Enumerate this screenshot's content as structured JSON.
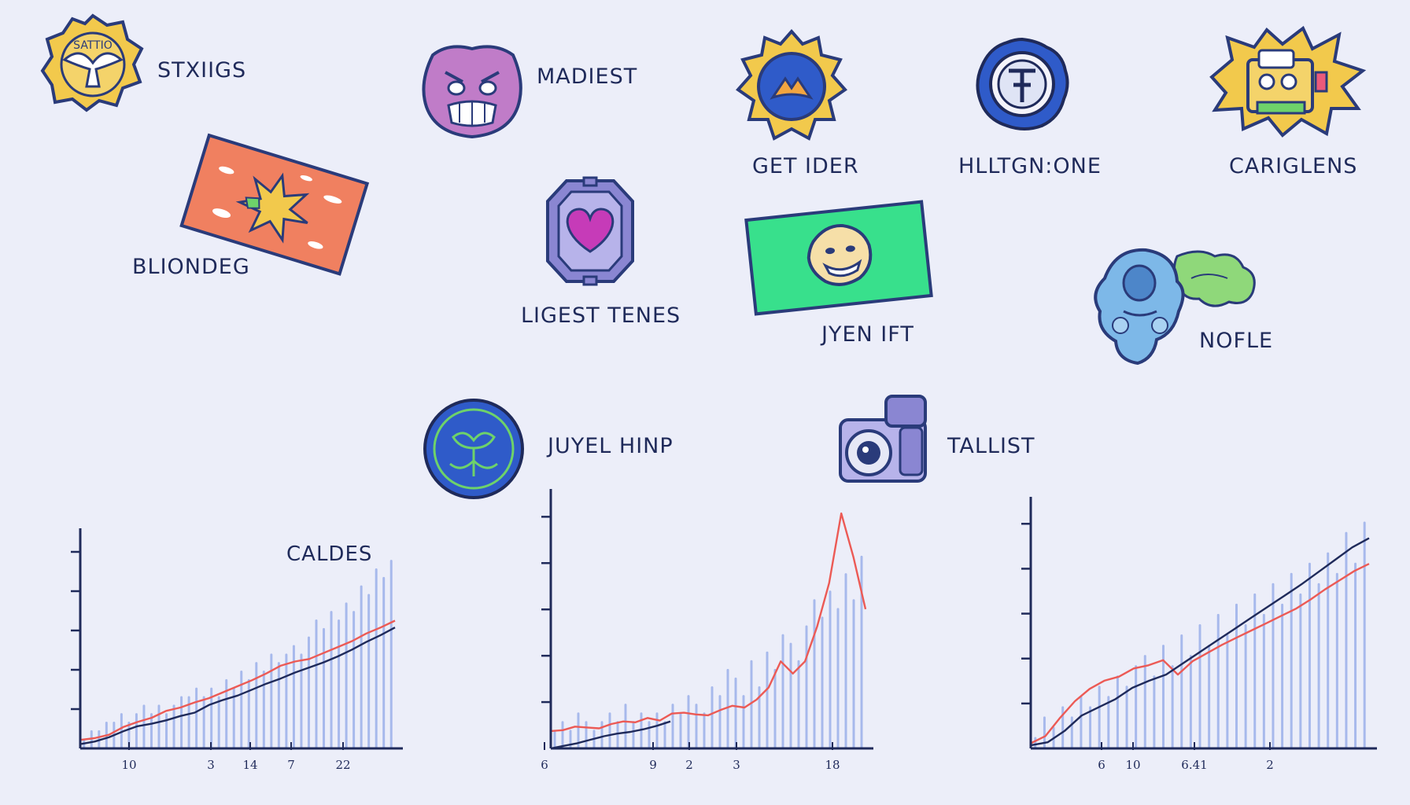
{
  "badges": [
    {
      "label": "STXIIGS",
      "icon": "shield-bird-icon",
      "inner_text": "SATTIO"
    },
    {
      "label": "MADIEST",
      "icon": "monster-face-icon"
    },
    {
      "label": "GET IDER",
      "icon": "sun-emblem-icon"
    },
    {
      "label": "HLLTGN:ONE",
      "icon": "seal-icon"
    },
    {
      "label": "CARIGLENS",
      "icon": "burst-face-icon"
    },
    {
      "label": "BLIONDEG",
      "icon": "explosion-card-icon"
    },
    {
      "label": "LIGEST TENES",
      "icon": "heart-frame-icon"
    },
    {
      "label": "JYEN IFT",
      "icon": "green-card-face-icon"
    },
    {
      "label": "NOFLE",
      "icon": "blue-creature-icon"
    },
    {
      "label": "JUYEL HINP",
      "icon": "round-crest-icon"
    },
    {
      "label": "TALLIST",
      "icon": "camera-icon"
    }
  ],
  "colors": {
    "background": "#eceef9",
    "ink": "#1f2a5a",
    "bars": "#9cb0ea",
    "red_line": "#ec5a55",
    "dark_line": "#1f2a5a"
  },
  "chart_data": [
    {
      "type": "line",
      "title": "CALDES",
      "x_tick_labels": [
        "10",
        "3",
        "14",
        "7",
        "22"
      ],
      "bars": [
        1,
        2,
        2,
        3,
        3,
        4,
        3,
        4,
        5,
        4,
        5,
        4,
        5,
        6,
        6,
        7,
        6,
        7,
        6,
        8,
        7,
        9,
        8,
        10,
        9,
        11,
        10,
        11,
        12,
        11,
        13,
        15,
        14,
        16,
        15,
        17,
        16,
        19,
        18,
        21,
        20,
        22
      ],
      "series": [
        {
          "color": "red",
          "values": [
            1,
            1.2,
            1.6,
            2.5,
            3.1,
            3.6,
            4.4,
            4.8,
            5.4,
            5.9,
            6.6,
            7.3,
            8,
            8.8,
            9.7,
            10.2,
            10.5,
            11.2,
            11.9,
            12.6,
            13.5,
            14.2,
            15
          ]
        },
        {
          "color": "dark",
          "values": [
            0.5,
            0.8,
            1.3,
            2,
            2.6,
            2.9,
            3.3,
            3.8,
            4.2,
            5.1,
            5.7,
            6.2,
            6.9,
            7.6,
            8.2,
            8.9,
            9.5,
            10.1,
            10.8,
            11.6,
            12.5,
            13.3,
            14.2
          ]
        }
      ]
    },
    {
      "type": "line",
      "x_tick_labels": [
        "6",
        "9",
        "2",
        "3",
        "18"
      ],
      "bars": [
        2,
        3,
        2,
        4,
        3,
        2,
        3,
        4,
        3,
        5,
        3,
        4,
        3,
        4,
        3,
        5,
        4,
        6,
        5,
        4,
        7,
        6,
        9,
        8,
        6,
        10,
        7,
        11,
        9,
        13,
        12,
        10,
        14,
        17,
        15,
        18,
        16,
        20,
        17,
        22
      ],
      "series": [
        {
          "color": "red",
          "values": [
            2,
            2.1,
            2.5,
            2.4,
            2.3,
            2.8,
            3.1,
            3.0,
            3.5,
            3.2,
            4.0,
            4.1,
            3.9,
            3.8,
            4.4,
            4.9,
            4.7,
            5.6,
            7.0,
            10,
            8.6,
            10,
            14,
            19,
            27,
            22,
            16
          ]
        },
        {
          "color": "dark",
          "values": [
            0,
            0.3,
            0.6,
            1.0,
            1.4,
            1.7,
            1.9,
            2.2,
            2.6,
            3.1
          ]
        }
      ]
    },
    {
      "type": "line",
      "x_tick_labels": [
        "6",
        "10",
        "6.41",
        "2"
      ],
      "bars": [
        1,
        3,
        2,
        4,
        3,
        5,
        4,
        6,
        5,
        7,
        6,
        8,
        9,
        7,
        10,
        8,
        11,
        9,
        12,
        10,
        13,
        11,
        14,
        12,
        15,
        13,
        16,
        14,
        17,
        15,
        18,
        16,
        19,
        17,
        21,
        18,
        22
      ],
      "series": [
        {
          "color": "red",
          "values": [
            0.5,
            1.2,
            3,
            4.6,
            5.8,
            6.6,
            7,
            7.8,
            8.1,
            8.6,
            7.2,
            8.5,
            9.3,
            10.1,
            10.8,
            11.5,
            12.2,
            12.9,
            13.6,
            14.5,
            15.5,
            16.4,
            17.3,
            18
          ]
        },
        {
          "color": "dark",
          "values": [
            0.3,
            0.6,
            1.7,
            3.2,
            4.0,
            4.8,
            5.9,
            6.6,
            7.2,
            8.3,
            9.4,
            10.5,
            11.6,
            12.7,
            13.8,
            14.9,
            16.0,
            17.2,
            18.4,
            19.6,
            20.5
          ]
        }
      ]
    }
  ]
}
